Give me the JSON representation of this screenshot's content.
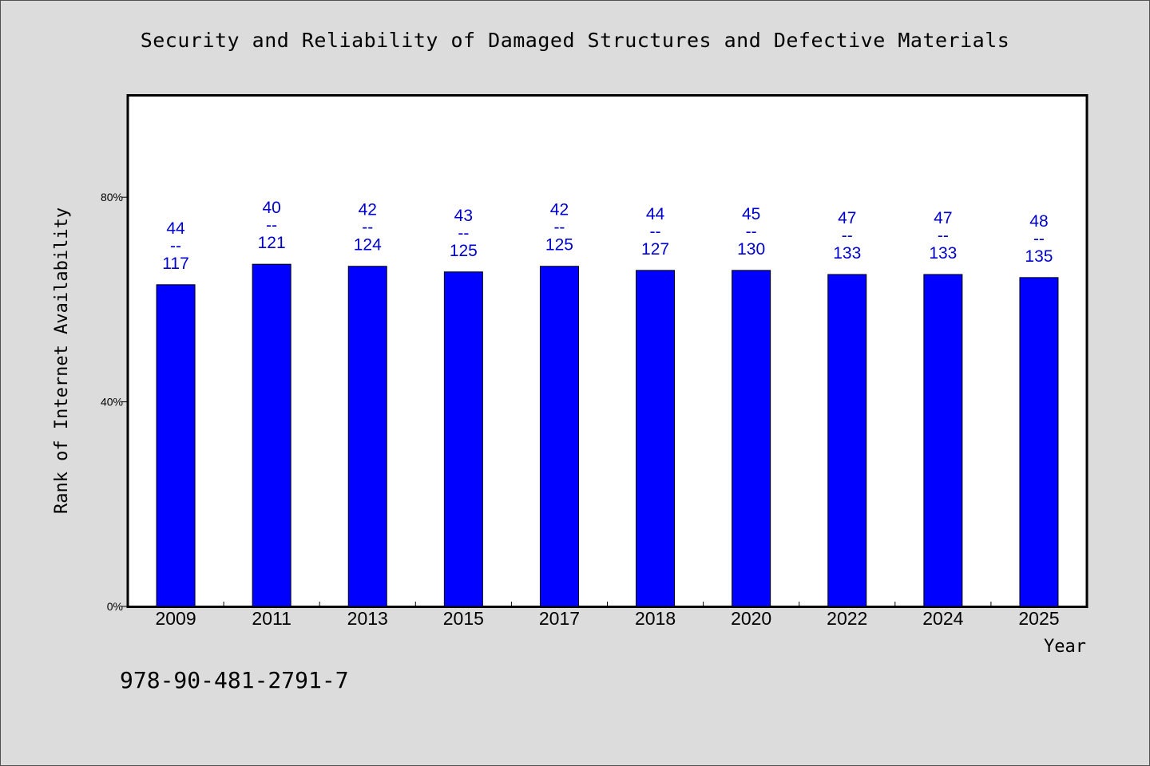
{
  "title": "Security and Reliability of Damaged Structures and Defective Materials",
  "footer_text": "978-90-481-2791-7",
  "chart_data": {
    "type": "bar",
    "title": "Security and Reliability of Damaged Structures and Defective Materials",
    "xlabel": "Year",
    "ylabel": "Rank of Internet Availability",
    "categories": [
      "2009",
      "2011",
      "2013",
      "2015",
      "2017",
      "2018",
      "2020",
      "2022",
      "2024",
      "2025"
    ],
    "values": [
      0.629,
      0.669,
      0.665,
      0.654,
      0.665,
      0.657,
      0.657,
      0.649,
      0.649,
      0.643
    ],
    "data_labels": [
      {
        "rank": "44",
        "separator": "--",
        "total": "117"
      },
      {
        "rank": "40",
        "separator": "--",
        "total": "121"
      },
      {
        "rank": "42",
        "separator": "--",
        "total": "124"
      },
      {
        "rank": "43",
        "separator": "--",
        "total": "125"
      },
      {
        "rank": "42",
        "separator": "--",
        "total": "125"
      },
      {
        "rank": "44",
        "separator": "--",
        "total": "127"
      },
      {
        "rank": "45",
        "separator": "--",
        "total": "130"
      },
      {
        "rank": "47",
        "separator": "--",
        "total": "133"
      },
      {
        "rank": "47",
        "separator": "--",
        "total": "133"
      },
      {
        "rank": "48",
        "separator": "--",
        "total": "135"
      }
    ],
    "yticks": [
      {
        "value": 0,
        "label": "0%"
      },
      {
        "value": 0.4,
        "label": "40%"
      },
      {
        "value": 0.8,
        "label": "80%"
      }
    ],
    "ylim": [
      0,
      1.0
    ],
    "grid": false,
    "legend": "none",
    "colors": {
      "bar": "#0000ff",
      "label": "#0000cc",
      "background": "#dcdcdc",
      "plot_background": "#ffffff"
    }
  }
}
